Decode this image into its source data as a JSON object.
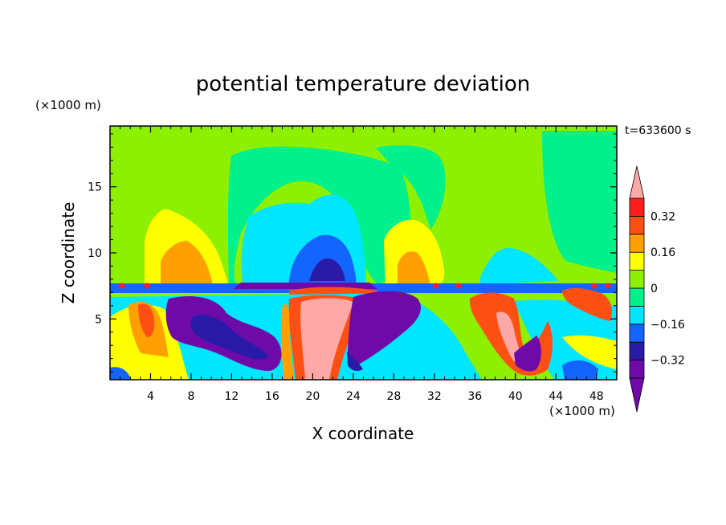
{
  "chart_data": {
    "type": "heatmap",
    "title": "potential temperature deviation",
    "xlabel": "X coordinate",
    "ylabel": "Z coordinate",
    "x_unit_label": "(×1000 m)",
    "y_unit_label": "(×1000 m)",
    "time_label": "t=633600 s",
    "xlim": [
      0,
      50
    ],
    "ylim": [
      0.4,
      19.6
    ],
    "x_ticks": [
      4,
      8,
      12,
      16,
      20,
      24,
      28,
      32,
      36,
      40,
      44,
      48
    ],
    "y_ticks": [
      5,
      10,
      15
    ],
    "colorbar": {
      "levels": [
        -0.4,
        -0.32,
        -0.24,
        -0.16,
        -0.08,
        0,
        0.08,
        0.16,
        0.24,
        0.32,
        0.4
      ],
      "labeled_levels": [
        0.32,
        0.16,
        0,
        -0.16,
        -0.32
      ],
      "labels": [
        "0.32",
        "0.16",
        "0",
        "−0.16",
        "−0.32"
      ],
      "colors": [
        "#6e0aa8",
        "#2a1aa8",
        "#1464ff",
        "#00e6ff",
        "#00f08c",
        "#8cf000",
        "#ffff00",
        "#ffa000",
        "#ff5014",
        "#ff1e1e",
        "#ffa8a8",
        "#ffa8a8"
      ],
      "extend": "both"
    },
    "colors": {
      "background_field": "#8cf000",
      "band_green": "#00f08c",
      "cyan": "#00e6ff",
      "blue": "#1464ff",
      "dark_blue": "#2a1aa8",
      "purple": "#6e0aa8",
      "yellow": "#ffff00",
      "orange": "#ffa000",
      "red_orange": "#ff5014",
      "red": "#ff1e1e",
      "pink": "#ffa8a8"
    }
  }
}
